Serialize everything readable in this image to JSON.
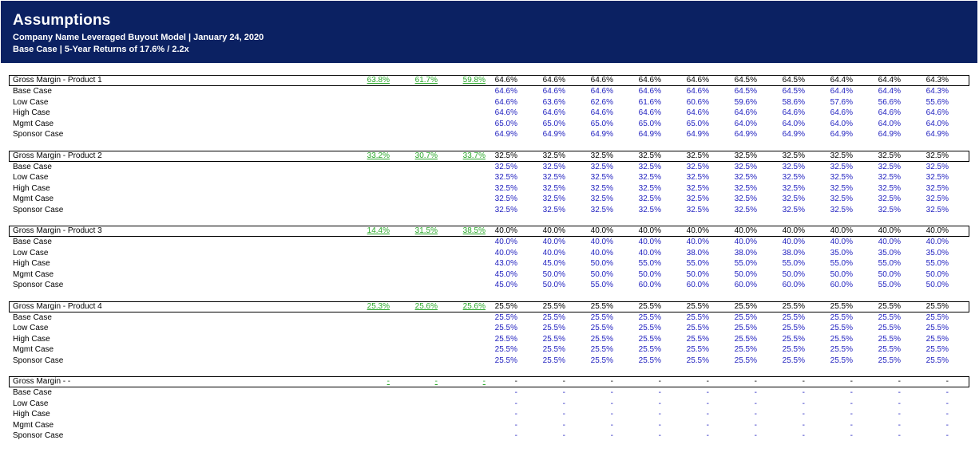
{
  "header": {
    "title": "Assumptions",
    "subtitle1": "Company Name Leveraged Buyout Model | January 24, 2020",
    "subtitle2": "Base Case | 5-Year Returns of 17.6%  / 2.2x"
  },
  "colors": {
    "header_bg": "#0b2162",
    "historical": "#2aa82a",
    "case_input": "#1f1fbf"
  },
  "blocks": [
    {
      "label": "Gross Margin - Product 1",
      "historical": [
        "63.8%",
        "61.7%",
        "59.8%"
      ],
      "projected": [
        "64.6%",
        "64.6%",
        "64.6%",
        "64.6%",
        "64.6%",
        "64.5%",
        "64.5%",
        "64.4%",
        "64.4%",
        "64.3%"
      ],
      "cases": [
        {
          "name": "Base Case",
          "values": [
            "64.6%",
            "64.6%",
            "64.6%",
            "64.6%",
            "64.6%",
            "64.5%",
            "64.5%",
            "64.4%",
            "64.4%",
            "64.3%"
          ]
        },
        {
          "name": "Low Case",
          "values": [
            "64.6%",
            "63.6%",
            "62.6%",
            "61.6%",
            "60.6%",
            "59.6%",
            "58.6%",
            "57.6%",
            "56.6%",
            "55.6%"
          ]
        },
        {
          "name": "High Case",
          "values": [
            "64.6%",
            "64.6%",
            "64.6%",
            "64.6%",
            "64.6%",
            "64.6%",
            "64.6%",
            "64.6%",
            "64.6%",
            "64.6%"
          ]
        },
        {
          "name": "Mgmt Case",
          "values": [
            "65.0%",
            "65.0%",
            "65.0%",
            "65.0%",
            "65.0%",
            "64.0%",
            "64.0%",
            "64.0%",
            "64.0%",
            "64.0%"
          ]
        },
        {
          "name": "Sponsor Case",
          "values": [
            "64.9%",
            "64.9%",
            "64.9%",
            "64.9%",
            "64.9%",
            "64.9%",
            "64.9%",
            "64.9%",
            "64.9%",
            "64.9%"
          ]
        }
      ]
    },
    {
      "label": "Gross Margin - Product 2",
      "historical": [
        "33.2%",
        "30.7%",
        "33.7%"
      ],
      "projected": [
        "32.5%",
        "32.5%",
        "32.5%",
        "32.5%",
        "32.5%",
        "32.5%",
        "32.5%",
        "32.5%",
        "32.5%",
        "32.5%"
      ],
      "cases": [
        {
          "name": "Base Case",
          "values": [
            "32.5%",
            "32.5%",
            "32.5%",
            "32.5%",
            "32.5%",
            "32.5%",
            "32.5%",
            "32.5%",
            "32.5%",
            "32.5%"
          ]
        },
        {
          "name": "Low Case",
          "values": [
            "32.5%",
            "32.5%",
            "32.5%",
            "32.5%",
            "32.5%",
            "32.5%",
            "32.5%",
            "32.5%",
            "32.5%",
            "32.5%"
          ]
        },
        {
          "name": "High Case",
          "values": [
            "32.5%",
            "32.5%",
            "32.5%",
            "32.5%",
            "32.5%",
            "32.5%",
            "32.5%",
            "32.5%",
            "32.5%",
            "32.5%"
          ]
        },
        {
          "name": "Mgmt Case",
          "values": [
            "32.5%",
            "32.5%",
            "32.5%",
            "32.5%",
            "32.5%",
            "32.5%",
            "32.5%",
            "32.5%",
            "32.5%",
            "32.5%"
          ]
        },
        {
          "name": "Sponsor Case",
          "values": [
            "32.5%",
            "32.5%",
            "32.5%",
            "32.5%",
            "32.5%",
            "32.5%",
            "32.5%",
            "32.5%",
            "32.5%",
            "32.5%"
          ]
        }
      ]
    },
    {
      "label": "Gross Margin - Product 3",
      "historical": [
        "14.4%",
        "31.5%",
        "38.5%"
      ],
      "projected": [
        "40.0%",
        "40.0%",
        "40.0%",
        "40.0%",
        "40.0%",
        "40.0%",
        "40.0%",
        "40.0%",
        "40.0%",
        "40.0%"
      ],
      "cases": [
        {
          "name": "Base Case",
          "values": [
            "40.0%",
            "40.0%",
            "40.0%",
            "40.0%",
            "40.0%",
            "40.0%",
            "40.0%",
            "40.0%",
            "40.0%",
            "40.0%"
          ]
        },
        {
          "name": "Low Case",
          "values": [
            "40.0%",
            "40.0%",
            "40.0%",
            "40.0%",
            "38.0%",
            "38.0%",
            "38.0%",
            "35.0%",
            "35.0%",
            "35.0%"
          ]
        },
        {
          "name": "High Case",
          "values": [
            "43.0%",
            "45.0%",
            "50.0%",
            "55.0%",
            "55.0%",
            "55.0%",
            "55.0%",
            "55.0%",
            "55.0%",
            "55.0%"
          ]
        },
        {
          "name": "Mgmt Case",
          "values": [
            "45.0%",
            "50.0%",
            "50.0%",
            "50.0%",
            "50.0%",
            "50.0%",
            "50.0%",
            "50.0%",
            "50.0%",
            "50.0%"
          ]
        },
        {
          "name": "Sponsor Case",
          "values": [
            "45.0%",
            "50.0%",
            "55.0%",
            "60.0%",
            "60.0%",
            "60.0%",
            "60.0%",
            "60.0%",
            "55.0%",
            "50.0%"
          ]
        }
      ]
    },
    {
      "label": "Gross Margin - Product 4",
      "historical": [
        "25.3%",
        "25.6%",
        "25.6%"
      ],
      "projected": [
        "25.5%",
        "25.5%",
        "25.5%",
        "25.5%",
        "25.5%",
        "25.5%",
        "25.5%",
        "25.5%",
        "25.5%",
        "25.5%"
      ],
      "cases": [
        {
          "name": "Base Case",
          "values": [
            "25.5%",
            "25.5%",
            "25.5%",
            "25.5%",
            "25.5%",
            "25.5%",
            "25.5%",
            "25.5%",
            "25.5%",
            "25.5%"
          ]
        },
        {
          "name": "Low Case",
          "values": [
            "25.5%",
            "25.5%",
            "25.5%",
            "25.5%",
            "25.5%",
            "25.5%",
            "25.5%",
            "25.5%",
            "25.5%",
            "25.5%"
          ]
        },
        {
          "name": "High Case",
          "values": [
            "25.5%",
            "25.5%",
            "25.5%",
            "25.5%",
            "25.5%",
            "25.5%",
            "25.5%",
            "25.5%",
            "25.5%",
            "25.5%"
          ]
        },
        {
          "name": "Mgmt Case",
          "values": [
            "25.5%",
            "25.5%",
            "25.5%",
            "25.5%",
            "25.5%",
            "25.5%",
            "25.5%",
            "25.5%",
            "25.5%",
            "25.5%"
          ]
        },
        {
          "name": "Sponsor Case",
          "values": [
            "25.5%",
            "25.5%",
            "25.5%",
            "25.5%",
            "25.5%",
            "25.5%",
            "25.5%",
            "25.5%",
            "25.5%",
            "25.5%"
          ]
        }
      ]
    },
    {
      "label": "Gross Margin - -",
      "historical": [
        "-",
        "-",
        "-"
      ],
      "projected": [
        "-",
        "-",
        "-",
        "-",
        "-",
        "-",
        "-",
        "-",
        "-",
        "-"
      ],
      "cases": [
        {
          "name": "Base Case",
          "values": [
            "-",
            "-",
            "-",
            "-",
            "-",
            "-",
            "-",
            "-",
            "-",
            "-"
          ]
        },
        {
          "name": "Low Case",
          "values": [
            "-",
            "-",
            "-",
            "-",
            "-",
            "-",
            "-",
            "-",
            "-",
            "-"
          ]
        },
        {
          "name": "High Case",
          "values": [
            "-",
            "-",
            "-",
            "-",
            "-",
            "-",
            "-",
            "-",
            "-",
            "-"
          ]
        },
        {
          "name": "Mgmt Case",
          "values": [
            "-",
            "-",
            "-",
            "-",
            "-",
            "-",
            "-",
            "-",
            "-",
            "-"
          ]
        },
        {
          "name": "Sponsor Case",
          "values": [
            "-",
            "-",
            "-",
            "-",
            "-",
            "-",
            "-",
            "-",
            "-",
            "-"
          ]
        }
      ]
    }
  ]
}
